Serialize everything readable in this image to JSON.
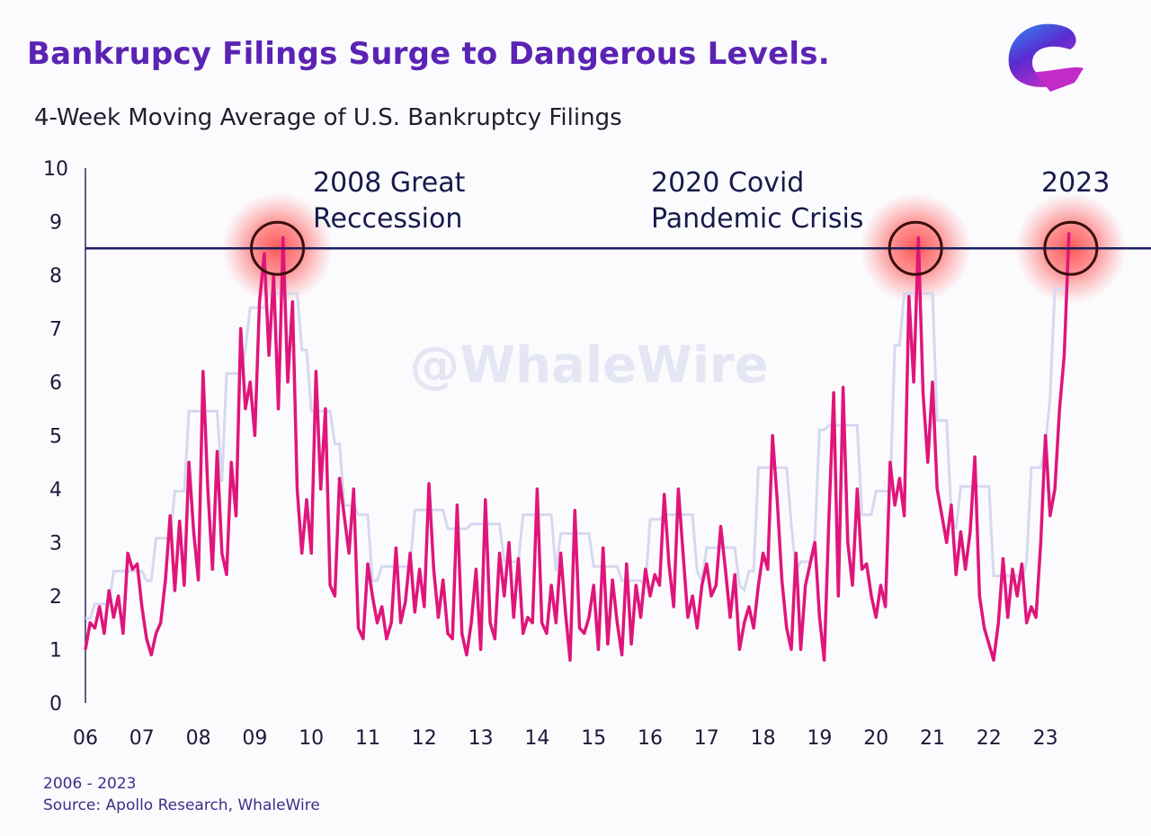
{
  "title": "Bankrupcy Filings Surge to Dangerous Levels.",
  "subtitle": "4-Week Moving Average of U.S. Bankruptcy Filings",
  "watermark": "@WhaleWire",
  "logo": {
    "name": "whale-logo",
    "colors": [
      "#2f8cf0",
      "#5a2bd0",
      "#c22bc8"
    ]
  },
  "footer": {
    "range": "2006 - 2023",
    "source": "Source: Apollo Research, WhaleWire"
  },
  "colors": {
    "series": "#e0157a",
    "envelope": "#d6d8ee",
    "reference_line": "#1b1f5c",
    "title": "#5b23b4",
    "glow": "#ff3b3b"
  },
  "chart_data": {
    "type": "line",
    "title": "4-Week Moving Average of U.S. Bankruptcy Filings",
    "xlabel": "",
    "ylabel": "",
    "ylim": [
      0,
      10
    ],
    "xlim": [
      2006,
      2024
    ],
    "yticks": [
      "0",
      "1",
      "2",
      "3",
      "4",
      "5",
      "6",
      "7",
      "8",
      "9",
      "10"
    ],
    "xticks": [
      "06",
      "07",
      "08",
      "09",
      "10",
      "11",
      "12",
      "13",
      "14",
      "15",
      "16",
      "17",
      "18",
      "19",
      "20",
      "21",
      "22",
      "23"
    ],
    "grid": false,
    "reference_line": 8.5,
    "series_by_year": {
      "2006": [
        1.0,
        1.5,
        1.4,
        1.8,
        1.3,
        2.1,
        1.6,
        2.0,
        1.3,
        2.8,
        2.5,
        2.6
      ],
      "2007": [
        1.8,
        1.2,
        0.9,
        1.3,
        1.5,
        2.3,
        3.5,
        2.1,
        3.4,
        2.2,
        4.5,
        3.2
      ],
      "2008": [
        2.3,
        6.2,
        4.0,
        2.5,
        4.7,
        2.8,
        2.4,
        4.5,
        3.5,
        7.0,
        5.5,
        6.0
      ],
      "2009": [
        5.0,
        7.5,
        8.4,
        6.5,
        8.0,
        5.5,
        8.7,
        6.0,
        7.5,
        4.0,
        2.8,
        3.8
      ],
      "2010": [
        2.8,
        6.2,
        4.0,
        5.5,
        2.2,
        2.0,
        4.2,
        3.5,
        2.8,
        4.0,
        1.4,
        1.2
      ],
      "2011": [
        2.6,
        2.0,
        1.5,
        1.8,
        1.2,
        1.5,
        2.9,
        1.5,
        1.9,
        2.8,
        1.7,
        2.5
      ],
      "2012": [
        1.8,
        4.1,
        2.5,
        1.6,
        2.3,
        1.3,
        1.2,
        3.7,
        1.3,
        0.9,
        1.5,
        2.5
      ],
      "2013": [
        1.0,
        3.8,
        1.5,
        1.2,
        2.8,
        2.0,
        3.0,
        1.6,
        2.7,
        1.3,
        1.6,
        1.5
      ],
      "2014": [
        4.0,
        1.5,
        1.3,
        2.2,
        1.5,
        2.8,
        1.7,
        0.8,
        3.6,
        1.4,
        1.3,
        1.6
      ],
      "2015": [
        2.2,
        1.0,
        2.9,
        1.1,
        2.3,
        1.5,
        0.9,
        2.6,
        1.1,
        2.2,
        1.6,
        2.5
      ],
      "2016": [
        2.0,
        2.4,
        2.2,
        3.9,
        2.6,
        1.8,
        4.0,
        2.8,
        1.6,
        2.0,
        1.4,
        2.2
      ],
      "2017": [
        2.6,
        2.0,
        2.2,
        3.3,
        2.5,
        1.6,
        2.4,
        1.0,
        1.5,
        1.8,
        1.4,
        2.2
      ],
      "2018": [
        2.8,
        2.5,
        5.0,
        3.8,
        2.3,
        1.4,
        1.0,
        2.8,
        1.0,
        2.2,
        2.6,
        3.0
      ],
      "2019": [
        1.6,
        0.8,
        3.5,
        5.8,
        2.0,
        5.9,
        3.0,
        2.2,
        4.0,
        2.5,
        2.6,
        2.0
      ],
      "2020": [
        1.6,
        2.2,
        1.8,
        4.5,
        3.7,
        4.2,
        3.5,
        7.6,
        6.0,
        8.7,
        5.8,
        4.5
      ],
      "2021": [
        6.0,
        4.0,
        3.5,
        3.0,
        3.7,
        2.4,
        3.2,
        2.5,
        3.2,
        4.6,
        2.0,
        1.4
      ],
      "2022": [
        1.1,
        0.8,
        1.5,
        2.7,
        1.6,
        2.5,
        2.0,
        2.6,
        1.5,
        1.8,
        1.6,
        3.0
      ],
      "2023": [
        5.0,
        3.5,
        4.0,
        5.5,
        6.5,
        8.8
      ]
    },
    "annotations": [
      {
        "lines": [
          "2008 Great",
          "Reccession"
        ],
        "peak_year": 2009.4,
        "peak_value": 8.7
      },
      {
        "lines": [
          "2020 Covid",
          "Pandemic Crisis"
        ],
        "peak_year": 2020.7,
        "peak_value": 8.7
      },
      {
        "lines": [
          "2023"
        ],
        "peak_year": 2023.45,
        "peak_value": 8.8
      }
    ]
  }
}
